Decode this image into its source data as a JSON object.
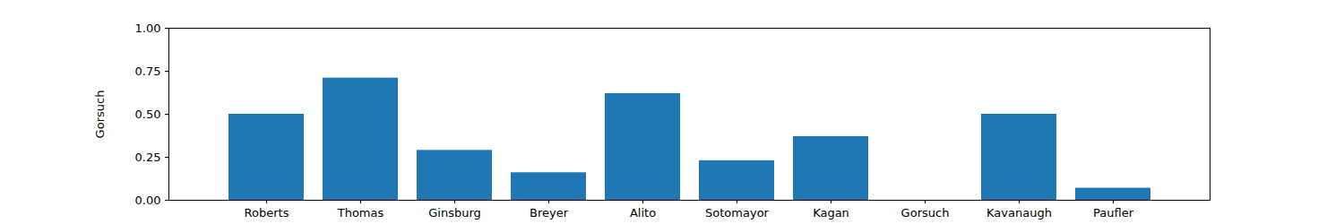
{
  "chart_data": {
    "type": "bar",
    "ylabel": "Gorsuch",
    "categories": [
      "Roberts",
      "Thomas",
      "Ginsburg",
      "Breyer",
      "Alito",
      "Sotomayor",
      "Kagan",
      "Gorsuch",
      "Kavanaugh",
      "Paufler"
    ],
    "values": [
      0.5,
      0.71,
      0.29,
      0.16,
      0.62,
      0.23,
      0.37,
      0,
      0.5,
      0.07
    ],
    "color": "#1f77b4",
    "ylim": [
      0,
      1
    ],
    "yticks": [
      {
        "value": 0,
        "label": "0.00"
      },
      {
        "value": 0.25,
        "label": "0.25"
      },
      {
        "value": 0.5,
        "label": "0.50"
      },
      {
        "value": 0.75,
        "label": "0.75"
      },
      {
        "value": 1,
        "label": "1.00"
      }
    ],
    "grid": false
  }
}
